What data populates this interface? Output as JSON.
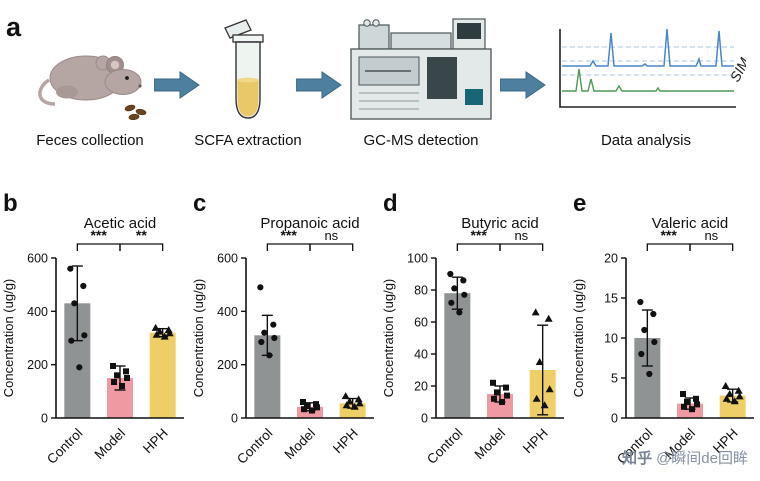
{
  "figure": {
    "panel_a": {
      "label": "a",
      "steps": [
        {
          "label": "Feces collection"
        },
        {
          "label": "SCFA extraction"
        },
        {
          "label": "GC-MS detection"
        },
        {
          "label": "Data analysis"
        }
      ],
      "sim_label": "SIM"
    },
    "watermark": {
      "brand": "知乎",
      "handle": "@瞬间de回眸"
    }
  },
  "colors": {
    "control_bar": "#8f9394",
    "model_bar": "#ef9aa2",
    "hph_bar": "#eecf67",
    "arrow": "#4f7f9e",
    "trace_blue": "#4a86c8",
    "trace_green": "#4d9a55",
    "grid_dash": "#aac7dd"
  },
  "chart_data": [
    {
      "type": "bar",
      "panel": "b",
      "title": "Acetic acid",
      "ylabel": "Concentration (ug/g)",
      "ylim": [
        0,
        600
      ],
      "yticks": [
        0,
        200,
        400,
        600
      ],
      "categories": [
        "Control",
        "Model",
        "HPH"
      ],
      "values": [
        430,
        150,
        320
      ],
      "errors": [
        140,
        45,
        15
      ],
      "points": [
        [
          560,
          495,
          430,
          310,
          290,
          190
        ],
        [
          195,
          175,
          160,
          150,
          135,
          120
        ],
        [
          338,
          330,
          324,
          318,
          312,
          305
        ]
      ],
      "sig": [
        {
          "from": 0,
          "to": 1,
          "label": "***"
        },
        {
          "from": 1,
          "to": 2,
          "label": "**"
        }
      ]
    },
    {
      "type": "bar",
      "panel": "c",
      "title": "Propanoic acid",
      "ylabel": "Concentration (ug/g)",
      "ylim": [
        0,
        600
      ],
      "yticks": [
        0,
        200,
        400,
        600
      ],
      "categories": [
        "Control",
        "Model",
        "HPH"
      ],
      "values": [
        310,
        42,
        55
      ],
      "errors": [
        75,
        15,
        18
      ],
      "points": [
        [
          490,
          350,
          320,
          300,
          285,
          235
        ],
        [
          60,
          52,
          45,
          40,
          33,
          28
        ],
        [
          82,
          70,
          62,
          55,
          48,
          42
        ]
      ],
      "sig": [
        {
          "from": 0,
          "to": 1,
          "label": "***"
        },
        {
          "from": 1,
          "to": 2,
          "label": "ns"
        }
      ]
    },
    {
      "type": "bar",
      "panel": "d",
      "title": "Butyric acid",
      "ylabel": "Concentration (ug/g)",
      "ylim": [
        0,
        100
      ],
      "yticks": [
        0,
        20,
        40,
        60,
        80,
        100
      ],
      "categories": [
        "Control",
        "Model",
        "HPH"
      ],
      "values": [
        78,
        15,
        30
      ],
      "errors": [
        10,
        5,
        28
      ],
      "points": [
        [
          90,
          86,
          81,
          77,
          72,
          66
        ],
        [
          22,
          19,
          16,
          14,
          12,
          10
        ],
        [
          66,
          62,
          35,
          18,
          12,
          8
        ]
      ],
      "sig": [
        {
          "from": 0,
          "to": 1,
          "label": "***"
        },
        {
          "from": 1,
          "to": 2,
          "label": "ns"
        }
      ]
    },
    {
      "type": "bar",
      "panel": "e",
      "title": "Valeric acid",
      "ylabel": "Concentration (ug/g)",
      "ylim": [
        0,
        20
      ],
      "yticks": [
        0,
        5,
        10,
        15,
        20
      ],
      "categories": [
        "Control",
        "Model",
        "HPH"
      ],
      "values": [
        10,
        1.8,
        2.8
      ],
      "errors": [
        3.5,
        0.7,
        0.8
      ],
      "points": [
        [
          14.5,
          13,
          11,
          9.5,
          8,
          5.5
        ],
        [
          3,
          2.4,
          2,
          1.7,
          1.4,
          1.1
        ],
        [
          4,
          3.4,
          3,
          2.7,
          2.4,
          2.1
        ]
      ],
      "sig": [
        {
          "from": 0,
          "to": 1,
          "label": "***"
        },
        {
          "from": 1,
          "to": 2,
          "label": "ns"
        }
      ]
    }
  ]
}
